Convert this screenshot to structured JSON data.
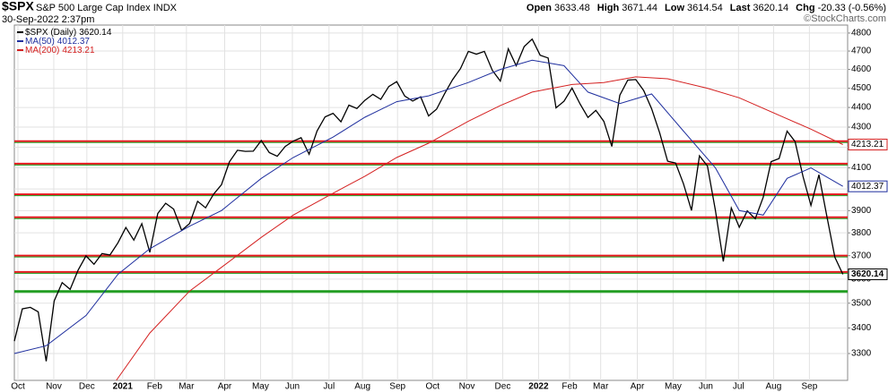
{
  "chart_data": {
    "type": "line",
    "symbol": "$SPX",
    "title": "S&P 500 Large Cap Index",
    "exchange": "INDX",
    "date": "30-Sep-2022 2:37pm",
    "quote": [
      {
        "label": "Open",
        "value": "3633.48"
      },
      {
        "label": "High",
        "value": "3671.44"
      },
      {
        "label": "Low",
        "value": "3614.54"
      },
      {
        "label": "Last",
        "value": "3620.14"
      },
      {
        "label": "Chg",
        "value": "-20.33 (-0.56%)"
      }
    ],
    "watermark": "©StockCharts.com",
    "log_scale": true,
    "grid": true,
    "ylim": [
      3198,
      4845
    ],
    "yticks": [
      3300,
      3400,
      3500,
      3600,
      3700,
      3800,
      3900,
      4000,
      4100,
      4200,
      4300,
      4400,
      4500,
      4600,
      4700,
      4800
    ],
    "xlim": [
      0,
      104.6
    ],
    "xticks": [
      {
        "value": 0.45,
        "label": "Oct"
      },
      {
        "value": 4.95,
        "label": "Nov"
      },
      {
        "value": 9.1,
        "label": "Dec"
      },
      {
        "value": 13.6,
        "label": "2021"
      },
      {
        "value": 17.6,
        "label": "Feb"
      },
      {
        "value": 21.6,
        "label": "Mar"
      },
      {
        "value": 26.4,
        "label": "Apr"
      },
      {
        "value": 30.9,
        "label": "May"
      },
      {
        "value": 34.9,
        "label": "Jun"
      },
      {
        "value": 39.5,
        "label": "Jul"
      },
      {
        "value": 43.7,
        "label": "Aug"
      },
      {
        "value": 48.1,
        "label": "Sep"
      },
      {
        "value": 52.5,
        "label": "Oct"
      },
      {
        "value": 56.8,
        "label": "Nov"
      },
      {
        "value": 61.3,
        "label": "Dec"
      },
      {
        "value": 65.8,
        "label": "2022"
      },
      {
        "value": 69.7,
        "label": "Feb"
      },
      {
        "value": 73.6,
        "label": "Mar"
      },
      {
        "value": 78.2,
        "label": "Apr"
      },
      {
        "value": 82.7,
        "label": "May"
      },
      {
        "value": 86.8,
        "label": "Jun"
      },
      {
        "value": 90.9,
        "label": "Jul"
      },
      {
        "value": 95.3,
        "label": "Aug"
      },
      {
        "value": 99.8,
        "label": "Sep"
      }
    ],
    "hlines": [
      {
        "value": 4230,
        "color": "#e8141c"
      },
      {
        "value": 4120,
        "color": "#e8141c"
      },
      {
        "value": 3975,
        "color": "#e8141c"
      },
      {
        "value": 3870,
        "color": "#e8141c"
      },
      {
        "value": 3700,
        "color": "#e8141c"
      },
      {
        "value": 3630,
        "color": "#e8141c"
      },
      {
        "value": 3550,
        "color": "#1a9a1a"
      }
    ],
    "hline_overlay_color": "#1a9a1a",
    "series": [
      {
        "name": "$SPX (Daily)",
        "last": 3620.14,
        "color": "#000000",
        "x": [
          0,
          1,
          2,
          3,
          4,
          5,
          6,
          7,
          8,
          9,
          10,
          11,
          12,
          13,
          14,
          15,
          16,
          17,
          18,
          19,
          20,
          21,
          22,
          23,
          24,
          25,
          26,
          27,
          28,
          29,
          30,
          31,
          32,
          33,
          34,
          35,
          36,
          37,
          38,
          39,
          40,
          41,
          42,
          43,
          44,
          45,
          46,
          47,
          48,
          49,
          50,
          51,
          52,
          53,
          54,
          55,
          56,
          57,
          58,
          59,
          60,
          61,
          62,
          63,
          64,
          65,
          66,
          67,
          68,
          69,
          70,
          71,
          72,
          73,
          74,
          75,
          76,
          77,
          78,
          79,
          80,
          81,
          82,
          83,
          84,
          85,
          86,
          87,
          88,
          89,
          90,
          91,
          92,
          93,
          94,
          95,
          96,
          97,
          98,
          99,
          100,
          101,
          102,
          103,
          104
        ],
        "values": [
          3348,
          3477,
          3483,
          3465,
          3270,
          3509,
          3585,
          3557,
          3638,
          3699,
          3663,
          3709,
          3703,
          3756,
          3824,
          3768,
          3841,
          3714,
          3887,
          3934,
          3907,
          3811,
          3842,
          3943,
          3913,
          3975,
          4020,
          4129,
          4185,
          4180,
          4181,
          4233,
          4174,
          4156,
          4204,
          4230,
          4247,
          4166,
          4281,
          4352,
          4370,
          4327,
          4412,
          4395,
          4437,
          4468,
          4442,
          4509,
          4535,
          4459,
          4433,
          4455,
          4357,
          4391,
          4471,
          4545,
          4605,
          4698,
          4683,
          4698,
          4595,
          4538,
          4712,
          4620,
          4725,
          4766,
          4677,
          4662,
          4398,
          4432,
          4501,
          4419,
          4349,
          4385,
          4329,
          4204,
          4463,
          4543,
          4546,
          4488,
          4393,
          4272,
          4132,
          4123,
          4024,
          3901,
          4158,
          4109,
          3901,
          3675,
          3912,
          3825,
          3899,
          3863,
          3962,
          4130,
          4145,
          4280,
          4228,
          4058,
          3924,
          4067,
          3873,
          3693,
          3620.14
        ]
      },
      {
        "name": "MA(50)",
        "last": 4012.37,
        "color": "#1f2f9e",
        "x": [
          0,
          4,
          9,
          13,
          17,
          22,
          26,
          31,
          35,
          40,
          44,
          48,
          52,
          57,
          61,
          65,
          69,
          72,
          76,
          80,
          84,
          88,
          91,
          94,
          97,
          100,
          104
        ],
        "values": [
          3300,
          3330,
          3450,
          3620,
          3730,
          3830,
          3900,
          4050,
          4150,
          4250,
          4350,
          4430,
          4460,
          4530,
          4600,
          4650,
          4620,
          4480,
          4420,
          4470,
          4280,
          4100,
          3900,
          3880,
          4050,
          4100,
          4012.37
        ]
      },
      {
        "name": "MA(200)",
        "last": 4213.21,
        "color": "#d42020",
        "x": [
          12.8,
          17,
          22,
          26,
          31,
          35,
          40,
          44,
          48,
          52,
          57,
          61,
          65,
          70,
          74,
          78,
          82,
          87,
          91,
          96,
          100,
          104
        ],
        "values": [
          3198,
          3380,
          3550,
          3650,
          3780,
          3880,
          3980,
          4060,
          4150,
          4220,
          4330,
          4410,
          4480,
          4520,
          4530,
          4560,
          4550,
          4500,
          4450,
          4360,
          4290,
          4213.21
        ]
      }
    ]
  }
}
